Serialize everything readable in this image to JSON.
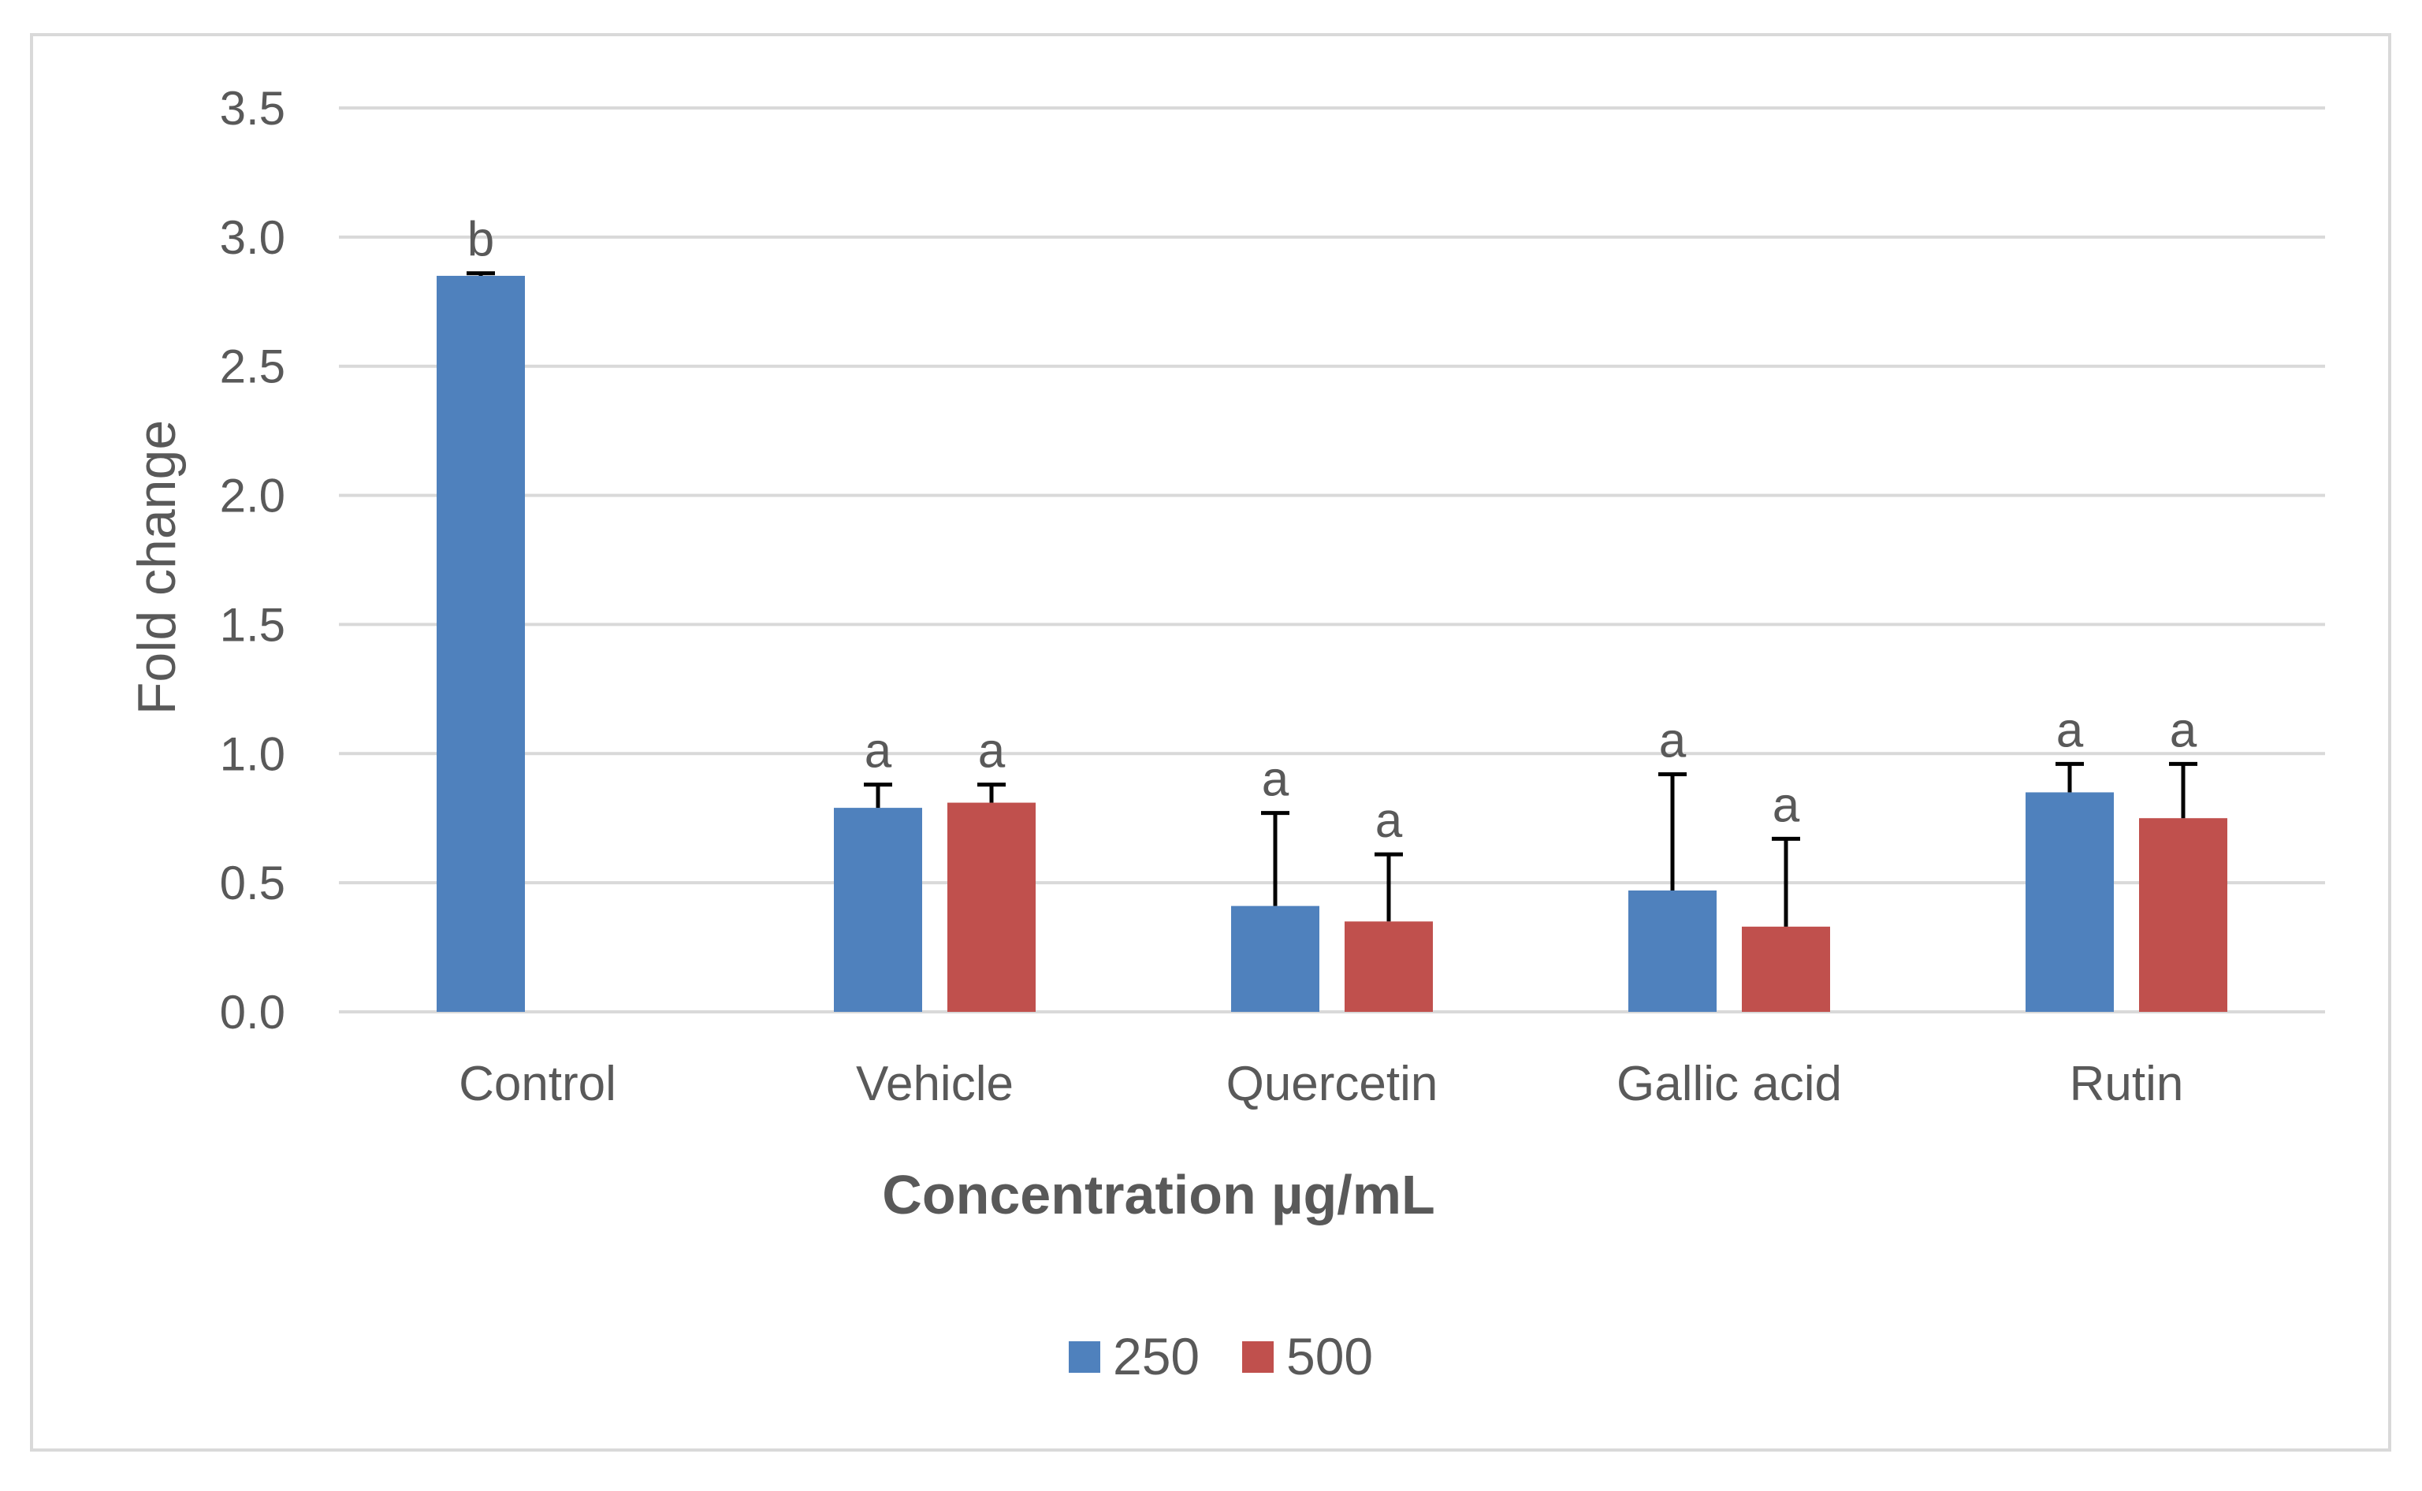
{
  "chart_data": {
    "type": "bar",
    "title": "",
    "xlabel": "Concentration µg/mL",
    "ylabel": "Fold change",
    "ylim": [
      0,
      3.5
    ],
    "yticks": [
      "0.0",
      "0.5",
      "1.0",
      "1.5",
      "2.0",
      "2.5",
      "3.0",
      "3.5"
    ],
    "ytick_values": [
      0,
      0.5,
      1.0,
      1.5,
      2.0,
      2.5,
      3.0,
      3.5
    ],
    "grid": true,
    "legend_position": "bottom-center",
    "categories": [
      "Control",
      "Vehicle",
      "Quercetin",
      "Gallic acid",
      "Rutin"
    ],
    "series": [
      {
        "name": "250",
        "color": "#4f81bd",
        "values": [
          2.85,
          0.79,
          0.41,
          0.47,
          0.85
        ],
        "errors": [
          0.01,
          0.09,
          0.36,
          0.45,
          0.11
        ],
        "sig_labels": [
          "b",
          "a",
          "a",
          "a",
          "a"
        ]
      },
      {
        "name": "500",
        "color": "#c0504d",
        "values": [
          null,
          0.81,
          0.35,
          0.33,
          0.75
        ],
        "errors": [
          null,
          0.07,
          0.26,
          0.34,
          0.21
        ],
        "sig_labels": [
          "",
          "a",
          "a",
          "a",
          "a"
        ]
      }
    ],
    "gridline_color": "#d9d9d9",
    "text_color": "#595959"
  }
}
